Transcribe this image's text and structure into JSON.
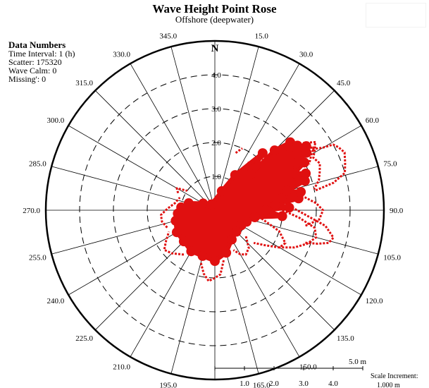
{
  "title": "Wave Height Point Rose",
  "subtitle": "Offshore (deepwater)",
  "data_numbers": {
    "heading": "Data Numbers",
    "time_interval": "Time Interval: 1 (h)",
    "scatter": "Scatter: 175320",
    "wave_calm": "Wave Calm: 0",
    "missing": "Missing': 0"
  },
  "north_label": "N",
  "scale": {
    "max_label": "5.0 m",
    "increment_label": "Scale Increment:",
    "increment_value": "1.000 m",
    "tick_labels": [
      "1.0",
      "2.0",
      "3.0",
      "4.0"
    ]
  },
  "colors": {
    "scatter": "#e01010",
    "frame": "#000000"
  },
  "chart_data": {
    "type": "scatter",
    "projection": "polar",
    "title": "Wave Height Point Rose",
    "subtitle": "Offshore (deepwater)",
    "radial_unit": "m",
    "rlim": [
      0,
      5
    ],
    "ring_labels": [
      "1.0",
      "2.0",
      "3.0",
      "4.0"
    ],
    "direction_labels": [
      "0",
      "15.0",
      "30.0",
      "45.0",
      "60.0",
      "75.0",
      "90.0",
      "105.0",
      "120.0",
      "135.0",
      "150.0",
      "165.0",
      "180.0",
      "195.0",
      "210.0",
      "225.0",
      "240.0",
      "255.0",
      "270.0",
      "285.0",
      "300.0",
      "315.0",
      "330.0",
      "345.0"
    ],
    "series": [
      {
        "color": "#e01010",
        "cluster_points": [
          [
            45,
            1.5
          ],
          [
            45,
            2.5
          ],
          [
            48,
            3.0
          ],
          [
            50,
            2.9
          ],
          [
            52,
            3.1
          ],
          [
            55,
            3.3
          ],
          [
            58,
            3.2
          ],
          [
            60,
            2.8
          ],
          [
            62,
            3.0
          ],
          [
            65,
            2.6
          ],
          [
            68,
            2.9
          ],
          [
            70,
            2.4
          ],
          [
            72,
            2.8
          ],
          [
            75,
            2.2
          ],
          [
            78,
            2.6
          ],
          [
            80,
            2.0
          ],
          [
            82,
            2.5
          ],
          [
            85,
            1.8
          ],
          [
            88,
            2.2
          ],
          [
            90,
            1.5
          ],
          [
            95,
            2.0
          ],
          [
            100,
            1.2
          ],
          [
            110,
            1.0
          ],
          [
            120,
            0.9
          ],
          [
            135,
            0.9
          ],
          [
            150,
            1.0
          ],
          [
            165,
            1.3
          ],
          [
            180,
            1.5
          ],
          [
            195,
            1.4
          ],
          [
            210,
            1.4
          ],
          [
            225,
            1.3
          ],
          [
            240,
            1.3
          ],
          [
            255,
            1.2
          ],
          [
            265,
            1.1
          ],
          [
            275,
            1.0
          ],
          [
            285,
            0.8
          ],
          [
            300,
            0.4
          ],
          [
            330,
            0.2
          ],
          [
            20,
            0.6
          ],
          [
            30,
            1.2
          ],
          [
            40,
            2.2
          ]
        ],
        "outer_trails": [
          [
            [
              58,
              3.4
            ],
            [
              60,
              3.7
            ],
            [
              61,
              4.0
            ],
            [
              63,
              4.1
            ],
            [
              66,
              4.2
            ],
            [
              70,
              4.1
            ],
            [
              74,
              4.0
            ],
            [
              77,
              3.6
            ],
            [
              79,
              3.0
            ]
          ],
          [
            [
              55,
              3.2
            ],
            [
              58,
              3.5
            ],
            [
              62,
              3.3
            ],
            [
              66,
              3.4
            ],
            [
              70,
              3.3
            ],
            [
              74,
              3.2
            ],
            [
              78,
              3.0
            ]
          ],
          [
            [
              50,
              3.0
            ],
            [
              53,
              3.3
            ],
            [
              56,
              3.6
            ],
            [
              60,
              3.3
            ],
            [
              64,
              3.1
            ]
          ],
          [
            [
              90,
              2.0
            ],
            [
              95,
              2.5
            ],
            [
              100,
              3.0
            ],
            [
              105,
              3.1
            ],
            [
              110,
              2.9
            ],
            [
              115,
              2.6
            ],
            [
              120,
              2.2
            ]
          ],
          [
            [
              85,
              2.1
            ],
            [
              92,
              2.6
            ],
            [
              98,
              3.3
            ],
            [
              103,
              3.6
            ],
            [
              106,
              3.5
            ],
            [
              108,
              3.2
            ],
            [
              110,
              2.8
            ]
          ],
          [
            [
              78,
              2.3
            ],
            [
              82,
              2.7
            ],
            [
              86,
              3.0
            ],
            [
              90,
              3.2
            ],
            [
              95,
              3.1
            ],
            [
              100,
              2.7
            ]
          ],
          [
            [
              100,
              1.4
            ],
            [
              108,
              2.0
            ],
            [
              115,
              2.3
            ],
            [
              120,
              2.2
            ],
            [
              125,
              1.8
            ],
            [
              130,
              1.5
            ]
          ],
          [
            [
              130,
              1.2
            ],
            [
              138,
              1.5
            ],
            [
              145,
              1.6
            ],
            [
              150,
              1.5
            ],
            [
              155,
              1.3
            ]
          ],
          [
            [
              170,
              1.5
            ],
            [
              175,
              1.9
            ],
            [
              180,
              2.0
            ],
            [
              185,
              2.1
            ],
            [
              190,
              1.9
            ],
            [
              195,
              1.6
            ]
          ],
          [
            [
              215,
              1.6
            ],
            [
              225,
              1.8
            ],
            [
              232,
              1.9
            ],
            [
              238,
              1.7
            ],
            [
              245,
              1.5
            ]
          ],
          [
            [
              250,
              1.5
            ],
            [
              258,
              1.6
            ],
            [
              265,
              1.6
            ],
            [
              272,
              1.4
            ],
            [
              280,
              1.2
            ],
            [
              290,
              1.1
            ]
          ],
          [
            [
              295,
              1.2
            ],
            [
              300,
              1.3
            ],
            [
              305,
              1.0
            ]
          ],
          [
            [
              35,
              1.7
            ],
            [
              40,
              2.0
            ],
            [
              44,
              2.1
            ]
          ],
          [
            [
              20,
              1.8
            ],
            [
              22,
              1.9
            ],
            [
              24,
              2.0
            ]
          ]
        ]
      }
    ],
    "grid": true
  }
}
